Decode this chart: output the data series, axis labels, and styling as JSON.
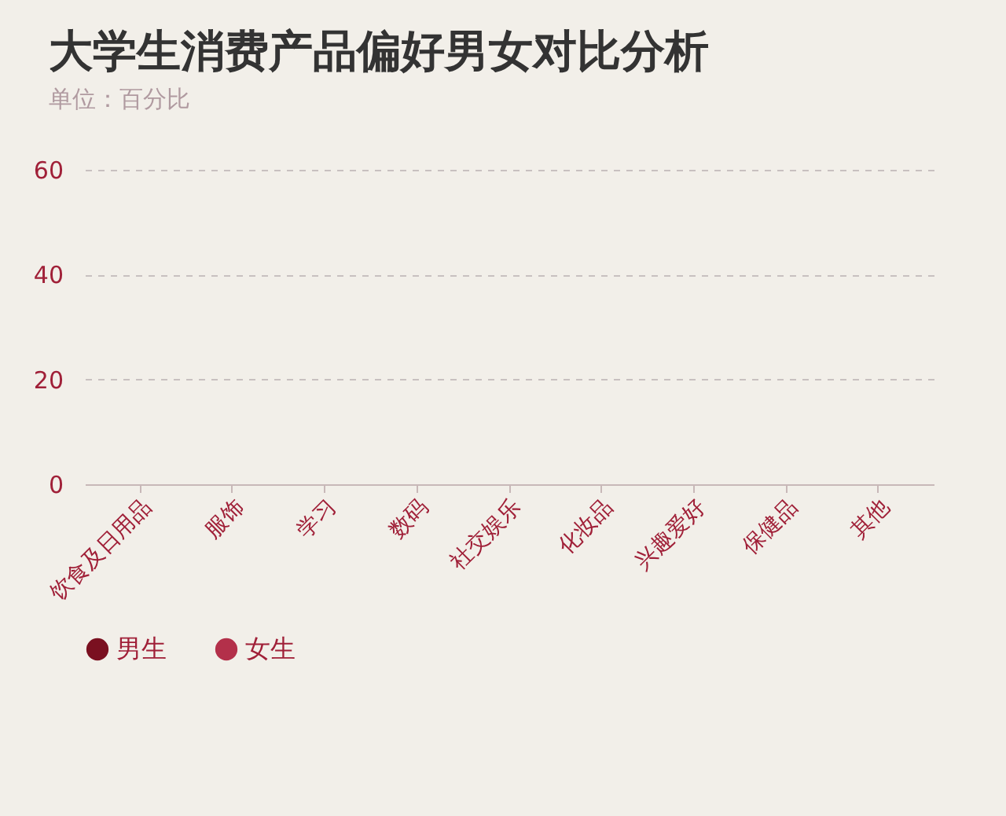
{
  "chart_data": {
    "type": "bar",
    "title": "大学生消费产品偏好男女对比分析",
    "subtitle": "单位：百分比",
    "categories": [
      "饮食及日用品",
      "服饰",
      "学习",
      "数码",
      "社交娱乐",
      "化妆品",
      "兴趣爱好",
      "保健品",
      "其他"
    ],
    "series": [
      {
        "name": "男生",
        "color": "#7a1020",
        "values": [
          0,
          0,
          0,
          0,
          0,
          0,
          0,
          0,
          0
        ]
      },
      {
        "name": "女生",
        "color": "#b3304a",
        "values": [
          0,
          0,
          0,
          0,
          0,
          0,
          0,
          0,
          0
        ]
      }
    ],
    "ylim": [
      0,
      60
    ],
    "yticks": [
      0,
      20,
      40,
      60
    ],
    "grid": "y",
    "legend": "bottom"
  }
}
